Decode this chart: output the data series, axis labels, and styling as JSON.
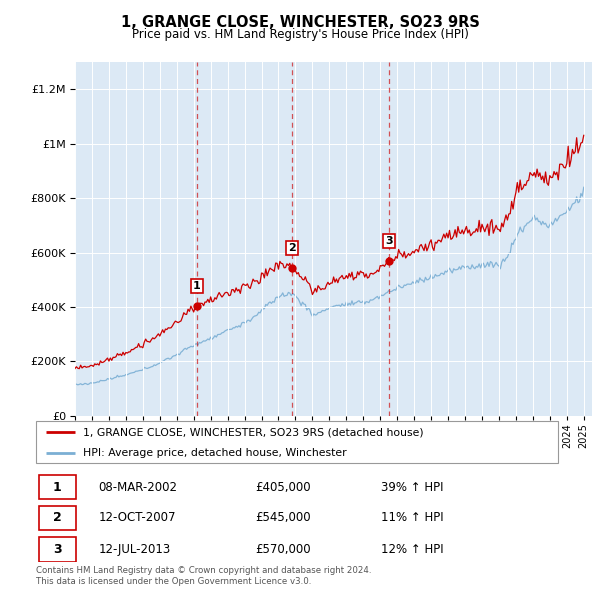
{
  "title": "1, GRANGE CLOSE, WINCHESTER, SO23 9RS",
  "subtitle": "Price paid vs. HM Land Registry's House Price Index (HPI)",
  "legend_line1": "1, GRANGE CLOSE, WINCHESTER, SO23 9RS (detached house)",
  "legend_line2": "HPI: Average price, detached house, Winchester",
  "footer1": "Contains HM Land Registry data © Crown copyright and database right 2024.",
  "footer2": "This data is licensed under the Open Government Licence v3.0.",
  "transactions": [
    {
      "num": 1,
      "date": "08-MAR-2002",
      "price": "£405,000",
      "change": "39% ↑ HPI"
    },
    {
      "num": 2,
      "date": "12-OCT-2007",
      "price": "£545,000",
      "change": "11% ↑ HPI"
    },
    {
      "num": 3,
      "date": "12-JUL-2013",
      "price": "£570,000",
      "change": "12% ↑ HPI"
    }
  ],
  "transaction_dates_year": [
    2002.19,
    2007.78,
    2013.53
  ],
  "transaction_prices": [
    405000,
    545000,
    570000
  ],
  "background_color": "#dce9f5",
  "line_red": "#cc0000",
  "line_blue": "#7bafd4",
  "ylim_max": 1300000,
  "xlim_start": 1995.0,
  "xlim_end": 2025.5,
  "hpi_key_x": [
    1995.0,
    1996.0,
    1997.0,
    1998.0,
    1999.0,
    2000.0,
    2001.0,
    2002.0,
    2003.0,
    2004.0,
    2005.0,
    2006.0,
    2007.0,
    2007.8,
    2008.5,
    2009.0,
    2009.5,
    2010.0,
    2011.0,
    2012.0,
    2013.0,
    2014.0,
    2015.0,
    2016.0,
    2017.0,
    2018.0,
    2019.0,
    2020.0,
    2020.5,
    2021.0,
    2022.0,
    2022.5,
    2023.0,
    2024.0,
    2025.0
  ],
  "hpi_key_y": [
    115000,
    120000,
    135000,
    150000,
    170000,
    195000,
    225000,
    260000,
    285000,
    315000,
    340000,
    385000,
    440000,
    450000,
    410000,
    370000,
    380000,
    400000,
    410000,
    415000,
    440000,
    470000,
    490000,
    510000,
    530000,
    545000,
    555000,
    555000,
    580000,
    660000,
    730000,
    710000,
    700000,
    750000,
    820000
  ]
}
